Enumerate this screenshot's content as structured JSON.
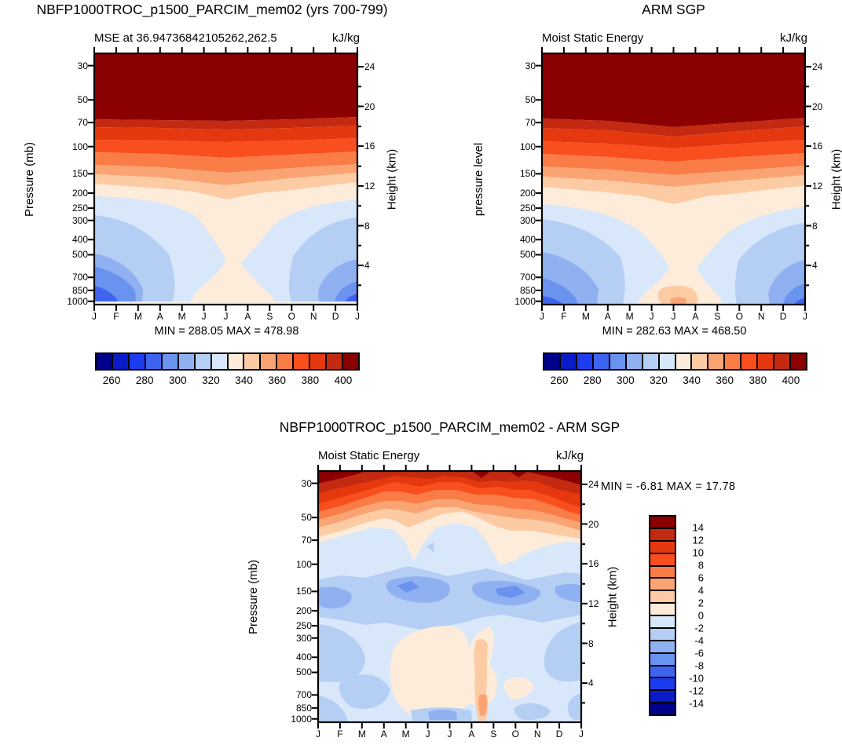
{
  "colors": {
    "background": "#FFFFFF",
    "axis": "#000000",
    "surface_gap": "#F3EEE6"
  },
  "palette": [
    "#00008B",
    "#0A1BC8",
    "#1E3CEF",
    "#3E64EF",
    "#6A92EF",
    "#90B1F1",
    "#B4CEF4",
    "#D8E8FA",
    "#FDECD9",
    "#FCCBA3",
    "#FBA473",
    "#FA7D48",
    "#F94F1E",
    "#E5380E",
    "#C32A11",
    "#8B0000"
  ],
  "axes": {
    "months": [
      "J",
      "F",
      "M",
      "A",
      "M",
      "J",
      "J",
      "A",
      "S",
      "O",
      "N",
      "D",
      "J"
    ],
    "pressures": [
      "30",
      "50",
      "70",
      "100",
      "150",
      "200",
      "250",
      "300",
      "400",
      "500",
      "700",
      "850",
      "1000"
    ],
    "heights": [
      "24",
      "20",
      "16",
      "12",
      "8",
      "4"
    ]
  },
  "panels": [
    {
      "title": "NBFP1000TROC_p1500_PARCIM_mem02 (yrs 700-799)",
      "subtitle_left": "MSE at 36.94736842105262,262.5",
      "subtitle_right": "kJ/kg",
      "ylabel_left": "Pressure (mb)",
      "ylabel_right": "Height (km)",
      "minmax": "MIN = 288.05 MAX = 478.98",
      "colorbar_labels": [
        "260",
        "280",
        "300",
        "320",
        "340",
        "360",
        "380",
        "400"
      ]
    },
    {
      "title": "ARM SGP",
      "subtitle_left": "Moist Static Energy",
      "subtitle_right": "kJ/kg",
      "ylabel_left": "pressure level",
      "ylabel_right": "Height (km)",
      "minmax": "MIN = 282.63 MAX = 468.50",
      "colorbar_labels": [
        "260",
        "280",
        "300",
        "320",
        "340",
        "360",
        "380",
        "400"
      ]
    },
    {
      "title": "NBFP1000TROC_p1500_PARCIM_mem02 - ARM SGP",
      "subtitle_left": "Moist Static Energy",
      "subtitle_right": "kJ/kg",
      "ylabel_left": "Pressure (mb)",
      "ylabel_right": "Height (km)",
      "minmax": "MIN =  -6.81 MAX =  17.78",
      "colorbar_labels": [
        "14",
        "12",
        "10",
        "8",
        "6",
        "4",
        "2",
        "0",
        "-2",
        "-4",
        "-6",
        "-8",
        "-10",
        "-12",
        "-14"
      ]
    }
  ],
  "chart_data": [
    {
      "type": "filled-contour",
      "title": "NBFP1000TROC_p1500_PARCIM_mem02 (yrs 700-799)",
      "subtitle": "MSE at 36.94736842105262,262.5",
      "units": "kJ/kg",
      "x_months": [
        "J",
        "F",
        "M",
        "A",
        "M",
        "J",
        "J",
        "A",
        "S",
        "O",
        "N",
        "D",
        "J"
      ],
      "y_pressure_mb": [
        30,
        50,
        70,
        100,
        150,
        200,
        250,
        300,
        400,
        500,
        700,
        850,
        1000
      ],
      "y2_height_km": [
        24,
        20,
        16,
        12,
        8,
        4
      ],
      "contour_levels": [
        260,
        270,
        280,
        290,
        300,
        310,
        320,
        330,
        340,
        350,
        360,
        370,
        380,
        390,
        400
      ],
      "min": 288.05,
      "max": 478.98,
      "colorbar": "horizontal, 16 cells, blue-to-red",
      "values_estimated": [
        [
          475,
          475,
          475,
          475,
          475,
          475,
          475,
          475,
          475,
          475,
          475,
          475,
          475
        ],
        [
          440,
          440,
          440,
          440,
          440,
          440,
          440,
          440,
          440,
          440,
          440,
          440,
          440
        ],
        [
          405,
          405,
          404,
          404,
          403,
          403,
          403,
          403,
          404,
          404,
          405,
          405,
          405
        ],
        [
          378,
          378,
          378,
          377,
          377,
          376,
          376,
          377,
          377,
          378,
          378,
          378,
          378
        ],
        [
          352,
          352,
          351,
          350,
          349,
          348,
          348,
          349,
          350,
          351,
          352,
          352,
          352
        ],
        [
          333,
          333,
          334,
          335,
          337,
          340,
          341,
          340,
          338,
          336,
          334,
          333,
          333
        ],
        [
          326,
          326,
          327,
          330,
          334,
          338,
          340,
          339,
          336,
          331,
          328,
          326,
          326
        ],
        [
          320,
          320,
          322,
          326,
          332,
          337,
          339,
          338,
          334,
          328,
          323,
          320,
          320
        ],
        [
          312,
          311,
          313,
          319,
          328,
          334,
          337,
          336,
          331,
          323,
          316,
          312,
          312
        ],
        [
          306,
          305,
          308,
          315,
          326,
          333,
          336,
          335,
          330,
          321,
          312,
          307,
          306
        ],
        [
          297,
          296,
          299,
          308,
          322,
          331,
          336,
          335,
          330,
          318,
          306,
          298,
          297
        ],
        [
          291,
          290,
          294,
          304,
          320,
          330,
          336,
          336,
          330,
          316,
          302,
          293,
          291
        ],
        [
          289,
          288,
          292,
          302,
          319,
          330,
          337,
          337,
          331,
          315,
          300,
          291,
          289
        ]
      ]
    },
    {
      "type": "filled-contour",
      "title": "ARM SGP",
      "subtitle": "Moist Static Energy",
      "units": "kJ/kg",
      "x_months": [
        "J",
        "F",
        "M",
        "A",
        "M",
        "J",
        "J",
        "A",
        "S",
        "O",
        "N",
        "D",
        "J"
      ],
      "y_pressure_mb": [
        30,
        50,
        70,
        100,
        150,
        200,
        250,
        300,
        400,
        500,
        700,
        850,
        1000
      ],
      "y2_height_km": [
        24,
        20,
        16,
        12,
        8,
        4
      ],
      "contour_levels": [
        260,
        270,
        280,
        290,
        300,
        310,
        320,
        330,
        340,
        350,
        360,
        370,
        380,
        390,
        400
      ],
      "min": 282.63,
      "max": 468.5,
      "colorbar": "horizontal, 16 cells, blue-to-red",
      "values_estimated": [
        [
          468,
          468,
          468,
          468,
          467,
          467,
          467,
          467,
          467,
          468,
          468,
          468,
          468
        ],
        [
          436,
          436,
          435,
          435,
          434,
          434,
          434,
          434,
          435,
          435,
          436,
          436,
          436
        ],
        [
          402,
          402,
          401,
          400,
          399,
          398,
          398,
          399,
          400,
          401,
          402,
          402,
          402
        ],
        [
          377,
          377,
          376,
          376,
          375,
          374,
          374,
          375,
          375,
          376,
          377,
          377,
          377
        ],
        [
          352,
          352,
          351,
          350,
          349,
          348,
          348,
          349,
          350,
          351,
          352,
          352,
          352
        ],
        [
          331,
          331,
          333,
          335,
          337,
          340,
          341,
          340,
          338,
          335,
          333,
          331,
          331
        ],
        [
          325,
          325,
          327,
          330,
          334,
          339,
          341,
          340,
          337,
          331,
          327,
          325,
          325
        ],
        [
          318,
          318,
          321,
          326,
          332,
          338,
          340,
          339,
          335,
          328,
          322,
          318,
          318
        ],
        [
          310,
          309,
          312,
          319,
          328,
          335,
          338,
          337,
          332,
          323,
          315,
          310,
          310
        ],
        [
          303,
          302,
          306,
          314,
          325,
          334,
          337,
          336,
          331,
          320,
          310,
          304,
          303
        ],
        [
          293,
          292,
          296,
          306,
          321,
          332,
          337,
          337,
          331,
          317,
          304,
          295,
          293
        ],
        [
          286,
          285,
          290,
          302,
          319,
          332,
          339,
          340,
          333,
          315,
          300,
          289,
          286
        ],
        [
          284,
          283,
          289,
          301,
          319,
          333,
          341,
          343,
          335,
          314,
          298,
          287,
          284
        ]
      ]
    },
    {
      "type": "filled-contour",
      "title": "NBFP1000TROC_p1500_PARCIM_mem02 - ARM SGP",
      "subtitle": "Moist Static Energy",
      "units": "kJ/kg",
      "x_months": [
        "J",
        "F",
        "M",
        "A",
        "M",
        "J",
        "J",
        "A",
        "S",
        "O",
        "N",
        "D",
        "J"
      ],
      "y_pressure_mb": [
        30,
        50,
        70,
        100,
        150,
        200,
        250,
        300,
        400,
        500,
        700,
        850,
        1000
      ],
      "y2_height_km": [
        24,
        20,
        16,
        12,
        8,
        4
      ],
      "contour_levels": [
        -14,
        -12,
        -10,
        -8,
        -6,
        -4,
        -2,
        0,
        2,
        4,
        6,
        8,
        10,
        12,
        14
      ],
      "min": -6.81,
      "max": 17.78,
      "colorbar": "vertical, 16 cells, red-on-top",
      "values_estimated": [
        [
          17,
          13,
          9,
          7,
          7,
          8,
          9,
          11,
          13,
          15,
          17,
          17,
          17
        ],
        [
          9,
          7,
          5,
          4,
          4,
          5,
          6,
          7,
          8,
          9,
          10,
          10,
          9
        ],
        [
          4,
          3,
          2,
          1,
          1,
          2,
          2,
          2,
          2,
          3,
          5,
          5,
          4
        ],
        [
          1,
          1,
          0,
          -1,
          -1,
          -1,
          -1,
          0,
          0,
          1,
          1,
          1,
          1
        ],
        [
          -3,
          -4,
          -4,
          -6,
          -7,
          -5,
          -4,
          -3,
          -5,
          -6,
          -5,
          -4,
          -3
        ],
        [
          -5,
          -4,
          -4,
          -5,
          -5,
          -4,
          -3,
          -4,
          -6,
          -6,
          -5,
          -5,
          -5
        ],
        [
          -4,
          -4,
          -3,
          -3,
          -3,
          -3,
          -3,
          -4,
          -5,
          -5,
          -5,
          -4,
          -4
        ],
        [
          -3,
          -3,
          -3,
          -2,
          -2,
          -2,
          -2,
          -3,
          -4,
          -4,
          -4,
          -3,
          -3
        ],
        [
          -3,
          -3,
          -2,
          -1,
          1,
          1,
          1,
          1,
          -1,
          -3,
          -3,
          -3,
          -3
        ],
        [
          -3,
          -2,
          -2,
          -1,
          1,
          1,
          1,
          1,
          -1,
          -2,
          -3,
          -3,
          -3
        ],
        [
          -2,
          -2,
          -2,
          -1,
          1,
          1,
          1,
          1,
          3,
          -1,
          -2,
          -2,
          -2
        ],
        [
          -3,
          -2,
          -1,
          1,
          1,
          1,
          1,
          1,
          5,
          0,
          -2,
          -2,
          -3
        ],
        [
          -3,
          -2,
          -1,
          0,
          1,
          1,
          -3,
          -3,
          3,
          0,
          -2,
          -2,
          -3
        ]
      ]
    }
  ]
}
